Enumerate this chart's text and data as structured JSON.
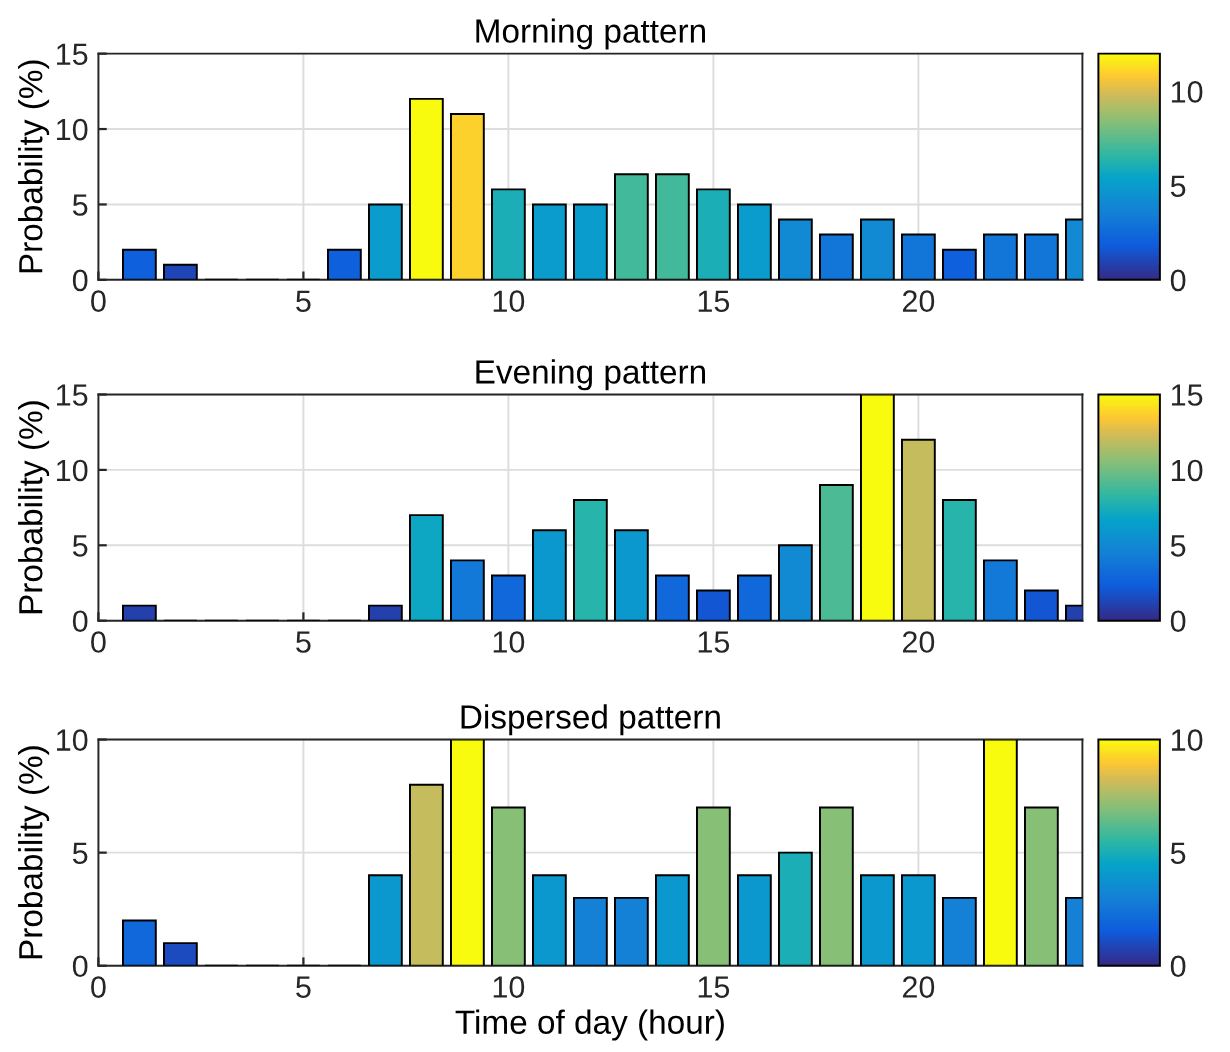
{
  "chart_data": [
    {
      "type": "bar",
      "title": "Morning pattern",
      "ylabel": "Probability (%)",
      "x": [
        1,
        2,
        3,
        4,
        5,
        6,
        7,
        8,
        9,
        10,
        11,
        12,
        13,
        14,
        15,
        16,
        17,
        18,
        19,
        20,
        21,
        22,
        23,
        24
      ],
      "values": [
        2,
        1,
        0,
        0,
        0,
        2,
        5,
        12,
        11,
        6,
        5,
        5,
        7,
        7,
        6,
        5,
        4,
        3,
        4,
        3,
        2,
        3,
        3,
        4
      ],
      "xlim": [
        0,
        24
      ],
      "xticks": [
        0,
        5,
        10,
        15,
        20
      ],
      "ylim": [
        0,
        15
      ],
      "yticks": [
        0,
        5,
        10,
        15
      ],
      "clim": [
        0,
        12
      ],
      "cticks": [
        0,
        5,
        10
      ],
      "grid": true
    },
    {
      "type": "bar",
      "title": "Evening pattern",
      "ylabel": "Probability (%)",
      "x": [
        1,
        2,
        3,
        4,
        5,
        6,
        7,
        8,
        9,
        10,
        11,
        12,
        13,
        14,
        15,
        16,
        17,
        18,
        19,
        20,
        21,
        22,
        23,
        24
      ],
      "values": [
        1,
        0,
        0,
        0,
        0,
        0,
        1,
        7,
        4,
        3,
        6,
        8,
        6,
        3,
        2,
        3,
        5,
        9,
        15,
        12,
        8,
        4,
        2,
        1
      ],
      "xlim": [
        0,
        24
      ],
      "xticks": [
        0,
        5,
        10,
        15,
        20
      ],
      "ylim": [
        0,
        15
      ],
      "yticks": [
        0,
        5,
        10,
        15
      ],
      "clim": [
        0,
        15
      ],
      "cticks": [
        0,
        5,
        10,
        15
      ],
      "grid": true
    },
    {
      "type": "bar",
      "title": "Dispersed pattern",
      "xlabel": "Time of day (hour)",
      "ylabel": "Probability (%)",
      "x": [
        1,
        2,
        3,
        4,
        5,
        6,
        7,
        8,
        9,
        10,
        11,
        12,
        13,
        14,
        15,
        16,
        17,
        18,
        19,
        20,
        21,
        22,
        23,
        24
      ],
      "values": [
        2,
        1,
        0,
        0,
        0,
        0,
        4,
        8,
        10,
        7,
        4,
        3,
        3,
        4,
        7,
        4,
        5,
        7,
        4,
        4,
        3,
        10,
        7,
        3
      ],
      "xlim": [
        0,
        24
      ],
      "xticks": [
        0,
        5,
        10,
        15,
        20
      ],
      "ylim": [
        0,
        10
      ],
      "yticks": [
        0,
        5,
        10
      ],
      "clim": [
        0,
        10
      ],
      "cticks": [
        0,
        5,
        10
      ],
      "grid": true
    }
  ]
}
